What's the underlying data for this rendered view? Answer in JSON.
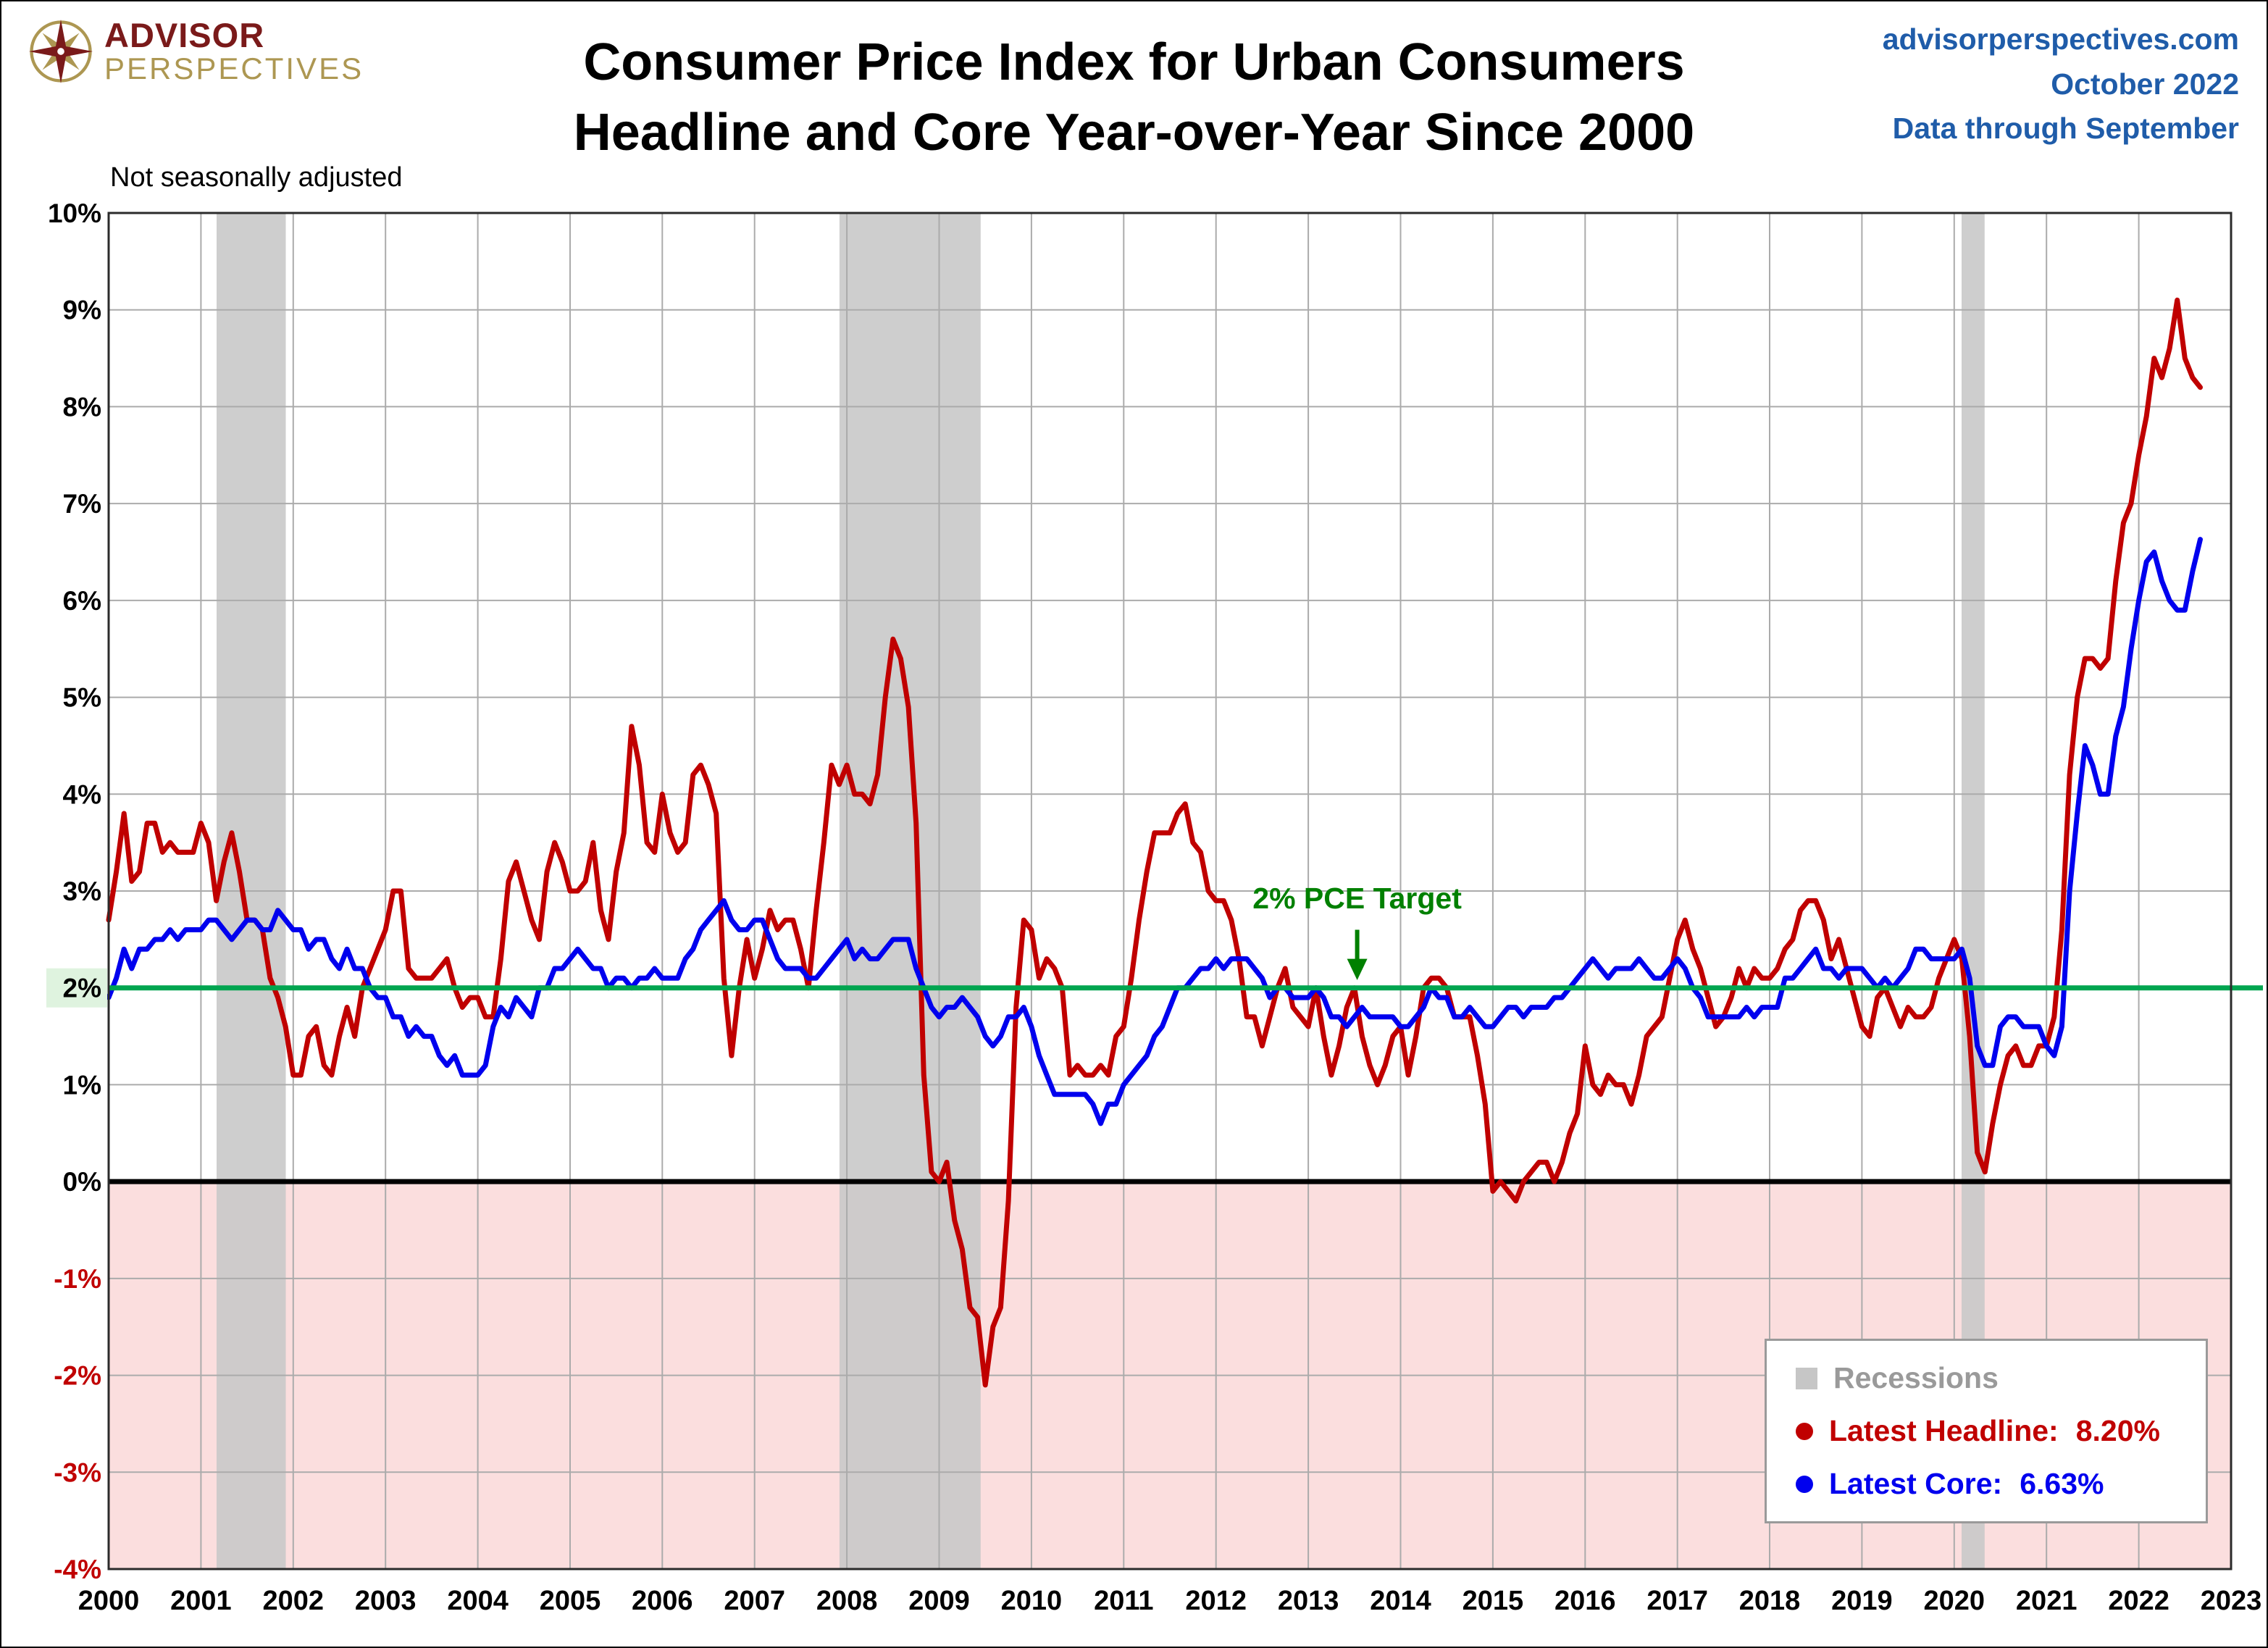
{
  "header": {
    "logo_line1": "ADVISOR",
    "logo_line2": "PERSPECTIVES",
    "title_line1": "Consumer Price Index for Urban Consumers",
    "title_line2": "Headline and Core Year-over-Year Since 2000",
    "site": "advisorperspectives.com",
    "date_label": "October 2022",
    "through_label": "Data through September",
    "note": "Not seasonally adjusted"
  },
  "chart_data": {
    "type": "line",
    "title": "Consumer Price Index for Urban Consumers",
    "subtitle": "Headline and Core Year-over-Year Since 2000",
    "note": "Not seasonally adjusted",
    "x_range": [
      2000,
      2023
    ],
    "ylim": [
      -4,
      10
    ],
    "x_ticks": [
      2000,
      2001,
      2002,
      2003,
      2004,
      2005,
      2006,
      2007,
      2008,
      2009,
      2010,
      2011,
      2012,
      2013,
      2014,
      2015,
      2016,
      2017,
      2018,
      2019,
      2020,
      2021,
      2022,
      2023
    ],
    "y_ticks": [
      -4,
      -3,
      -2,
      -1,
      0,
      1,
      2,
      3,
      4,
      5,
      6,
      7,
      8,
      9,
      10
    ],
    "target_value": 2,
    "target_label": "2% PCE Target",
    "recessions": [
      [
        2001.17,
        2001.92
      ],
      [
        2007.92,
        2009.45
      ],
      [
        2020.08,
        2020.33
      ]
    ],
    "colors": {
      "grid": "#ABABAB",
      "below_zero_fill": "#FBDEDE",
      "recession": "#C9C9C9",
      "target": "#00A550",
      "target_text": "#008000",
      "negative_label": "#C00000",
      "headline": "#C00000",
      "core": "#0000EE"
    },
    "series": [
      {
        "id": "headline",
        "name": "Headline CPI YoY",
        "color": "#C00000",
        "start_x": 2000.0,
        "values": [
          2.7,
          3.2,
          3.8,
          3.1,
          3.2,
          3.7,
          3.7,
          3.4,
          3.5,
          3.4,
          3.4,
          3.4,
          3.7,
          3.5,
          2.9,
          3.3,
          3.6,
          3.2,
          2.7,
          2.7,
          2.6,
          2.1,
          1.9,
          1.6,
          1.1,
          1.1,
          1.5,
          1.6,
          1.2,
          1.1,
          1.5,
          1.8,
          1.5,
          2.0,
          2.2,
          2.4,
          2.6,
          3.0,
          3.0,
          2.2,
          2.1,
          2.1,
          2.1,
          2.2,
          2.3,
          2.0,
          1.8,
          1.9,
          1.9,
          1.7,
          1.7,
          2.3,
          3.1,
          3.3,
          3.0,
          2.7,
          2.5,
          3.2,
          3.5,
          3.3,
          3.0,
          3.0,
          3.1,
          3.5,
          2.8,
          2.5,
          3.2,
          3.6,
          4.7,
          4.3,
          3.5,
          3.4,
          4.0,
          3.6,
          3.4,
          3.5,
          4.2,
          4.3,
          4.1,
          3.8,
          2.1,
          1.3,
          2.0,
          2.5,
          2.1,
          2.4,
          2.8,
          2.6,
          2.7,
          2.7,
          2.4,
          2.0,
          2.8,
          3.5,
          4.3,
          4.1,
          4.3,
          4.0,
          4.0,
          3.9,
          4.2,
          5.0,
          5.6,
          5.4,
          4.9,
          3.7,
          1.1,
          0.1,
          0.0,
          0.2,
          -0.4,
          -0.7,
          -1.3,
          -1.4,
          -2.1,
          -1.5,
          -1.3,
          -0.2,
          1.8,
          2.7,
          2.6,
          2.1,
          2.3,
          2.2,
          2.0,
          1.1,
          1.2,
          1.1,
          1.1,
          1.2,
          1.1,
          1.5,
          1.6,
          2.1,
          2.7,
          3.2,
          3.6,
          3.6,
          3.6,
          3.8,
          3.9,
          3.5,
          3.4,
          3.0,
          2.9,
          2.9,
          2.7,
          2.3,
          1.7,
          1.7,
          1.4,
          1.7,
          2.0,
          2.2,
          1.8,
          1.7,
          1.6,
          2.0,
          1.5,
          1.1,
          1.4,
          1.8,
          2.0,
          1.5,
          1.2,
          1.0,
          1.2,
          1.5,
          1.6,
          1.1,
          1.5,
          2.0,
          2.1,
          2.1,
          2.0,
          1.7,
          1.7,
          1.7,
          1.3,
          0.8,
          -0.1,
          0.0,
          -0.1,
          -0.2,
          0.0,
          0.1,
          0.2,
          0.2,
          0.0,
          0.2,
          0.5,
          0.7,
          1.4,
          1.0,
          0.9,
          1.1,
          1.0,
          1.0,
          0.8,
          1.1,
          1.5,
          1.6,
          1.7,
          2.1,
          2.5,
          2.7,
          2.4,
          2.2,
          1.9,
          1.6,
          1.7,
          1.9,
          2.2,
          2.0,
          2.2,
          2.1,
          2.1,
          2.2,
          2.4,
          2.5,
          2.8,
          2.9,
          2.9,
          2.7,
          2.3,
          2.5,
          2.2,
          1.9,
          1.6,
          1.5,
          1.9,
          2.0,
          1.8,
          1.6,
          1.8,
          1.7,
          1.7,
          1.8,
          2.1,
          2.3,
          2.5,
          2.3,
          1.5,
          0.3,
          0.1,
          0.6,
          1.0,
          1.3,
          1.4,
          1.2,
          1.2,
          1.4,
          1.4,
          1.7,
          2.6,
          4.2,
          5.0,
          5.4,
          5.4,
          5.3,
          5.4,
          6.2,
          6.8,
          7.0,
          7.5,
          7.9,
          8.5,
          8.3,
          8.6,
          9.1,
          8.5,
          8.3,
          8.2
        ]
      },
      {
        "id": "core",
        "name": "Core CPI YoY",
        "color": "#0000EE",
        "start_x": 2000.0,
        "values": [
          1.9,
          2.1,
          2.4,
          2.2,
          2.4,
          2.4,
          2.5,
          2.5,
          2.6,
          2.5,
          2.6,
          2.6,
          2.6,
          2.7,
          2.7,
          2.6,
          2.5,
          2.6,
          2.7,
          2.7,
          2.6,
          2.6,
          2.8,
          2.7,
          2.6,
          2.6,
          2.4,
          2.5,
          2.5,
          2.3,
          2.2,
          2.4,
          2.2,
          2.2,
          2.0,
          1.9,
          1.9,
          1.7,
          1.7,
          1.5,
          1.6,
          1.5,
          1.5,
          1.3,
          1.2,
          1.3,
          1.1,
          1.1,
          1.1,
          1.2,
          1.6,
          1.8,
          1.7,
          1.9,
          1.8,
          1.7,
          2.0,
          2.0,
          2.2,
          2.2,
          2.3,
          2.4,
          2.3,
          2.2,
          2.2,
          2.0,
          2.1,
          2.1,
          2.0,
          2.1,
          2.1,
          2.2,
          2.1,
          2.1,
          2.1,
          2.3,
          2.4,
          2.6,
          2.7,
          2.8,
          2.9,
          2.7,
          2.6,
          2.6,
          2.7,
          2.7,
          2.5,
          2.3,
          2.2,
          2.2,
          2.2,
          2.1,
          2.1,
          2.2,
          2.3,
          2.4,
          2.5,
          2.3,
          2.4,
          2.3,
          2.3,
          2.4,
          2.5,
          2.5,
          2.5,
          2.2,
          2.0,
          1.8,
          1.7,
          1.8,
          1.8,
          1.9,
          1.8,
          1.7,
          1.5,
          1.4,
          1.5,
          1.7,
          1.7,
          1.8,
          1.6,
          1.3,
          1.1,
          0.9,
          0.9,
          0.9,
          0.9,
          0.9,
          0.8,
          0.6,
          0.8,
          0.8,
          1.0,
          1.1,
          1.2,
          1.3,
          1.5,
          1.6,
          1.8,
          2.0,
          2.0,
          2.1,
          2.2,
          2.2,
          2.3,
          2.2,
          2.3,
          2.3,
          2.3,
          2.2,
          2.1,
          1.9,
          2.0,
          2.0,
          1.9,
          1.9,
          1.9,
          2.0,
          1.9,
          1.7,
          1.7,
          1.6,
          1.7,
          1.8,
          1.7,
          1.7,
          1.7,
          1.7,
          1.6,
          1.6,
          1.7,
          1.8,
          2.0,
          1.9,
          1.9,
          1.7,
          1.7,
          1.8,
          1.7,
          1.6,
          1.6,
          1.7,
          1.8,
          1.8,
          1.7,
          1.8,
          1.8,
          1.8,
          1.9,
          1.9,
          2.0,
          2.1,
          2.2,
          2.3,
          2.2,
          2.1,
          2.2,
          2.2,
          2.2,
          2.3,
          2.2,
          2.1,
          2.1,
          2.2,
          2.3,
          2.2,
          2.0,
          1.9,
          1.7,
          1.7,
          1.7,
          1.7,
          1.7,
          1.8,
          1.7,
          1.8,
          1.8,
          1.8,
          2.1,
          2.1,
          2.2,
          2.3,
          2.4,
          2.2,
          2.2,
          2.1,
          2.2,
          2.2,
          2.2,
          2.1,
          2.0,
          2.1,
          2.0,
          2.1,
          2.2,
          2.4,
          2.4,
          2.3,
          2.3,
          2.3,
          2.3,
          2.4,
          2.1,
          1.4,
          1.2,
          1.2,
          1.6,
          1.7,
          1.7,
          1.6,
          1.6,
          1.6,
          1.4,
          1.3,
          1.6,
          3.0,
          3.8,
          4.5,
          4.3,
          4.0,
          4.0,
          4.6,
          4.9,
          5.5,
          6.0,
          6.4,
          6.5,
          6.2,
          6.0,
          5.9,
          5.9,
          6.3,
          6.63
        ]
      }
    ],
    "legend": {
      "items": [
        {
          "marker": "square",
          "marker_color": "#C6C6C6",
          "text_color": "#9A9A9A",
          "label": "Recessions",
          "value": ""
        },
        {
          "marker": "circle",
          "marker_color": "#C00000",
          "text_color": "#C00000",
          "label": "Latest Headline:",
          "value": "8.20%"
        },
        {
          "marker": "circle",
          "marker_color": "#0000EE",
          "text_color": "#0000EE",
          "label": "Latest Core:",
          "value": "6.63%"
        }
      ]
    }
  }
}
